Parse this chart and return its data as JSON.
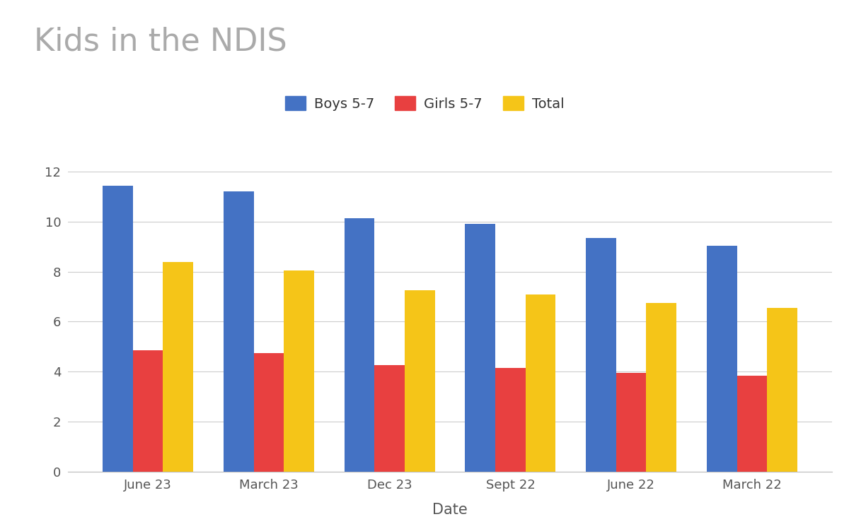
{
  "title": "Kids in the NDIS",
  "xlabel": "Date",
  "ylabel": "",
  "categories": [
    "June 23",
    "March 23",
    "Dec 23",
    "Sept 22",
    "June 22",
    "March 22"
  ],
  "boys": [
    11.45,
    11.2,
    10.15,
    9.9,
    9.35,
    9.05
  ],
  "girls": [
    4.85,
    4.75,
    4.25,
    4.15,
    3.95,
    3.85
  ],
  "total": [
    8.4,
    8.05,
    7.25,
    7.1,
    6.75,
    6.55
  ],
  "boy_color": "#4472C4",
  "girl_color": "#E84040",
  "total_color": "#F5C518",
  "ylim": [
    0,
    13
  ],
  "yticks": [
    0,
    2,
    4,
    6,
    8,
    10,
    12
  ],
  "title_fontsize": 32,
  "title_color": "#aaaaaa",
  "axis_label_fontsize": 15,
  "tick_fontsize": 13,
  "legend_fontsize": 14,
  "bar_width": 0.25,
  "background_color": "#ffffff",
  "grid_color": "#cccccc"
}
